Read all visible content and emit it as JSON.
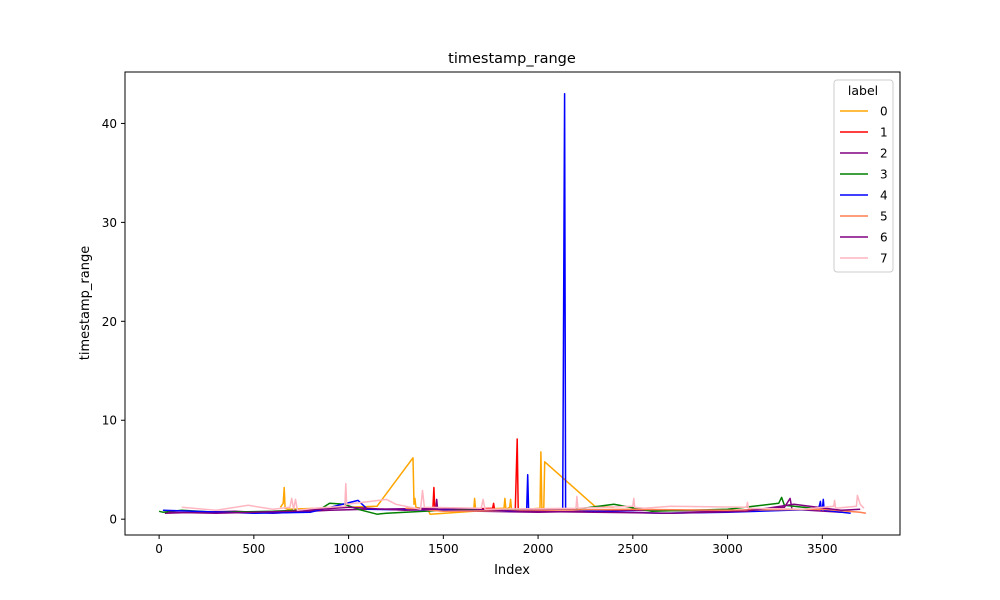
{
  "chart_data": {
    "type": "line",
    "title": "timestamp_range",
    "xlabel": "Index",
    "ylabel": "timestamp_range",
    "xlim": [
      -180,
      3910
    ],
    "ylim": [
      -1.6,
      45.2
    ],
    "xticks": [
      0,
      500,
      1000,
      1500,
      2000,
      2500,
      3000,
      3500
    ],
    "yticks": [
      0,
      10,
      20,
      30,
      40
    ],
    "grid": false,
    "legend": {
      "title": "label",
      "placement": "top-right"
    },
    "series": [
      {
        "name": "0",
        "color": "#ffa500",
        "points": [
          [
            640,
            1.2
          ],
          [
            655,
            1.6
          ],
          [
            660,
            3.2
          ],
          [
            665,
            1.1
          ],
          [
            680,
            1.0
          ],
          [
            1150,
            1.3
          ],
          [
            1340,
            6.2
          ],
          [
            1345,
            1.5
          ],
          [
            1350,
            2.1
          ],
          [
            1355,
            1.2
          ],
          [
            1420,
            0.9
          ],
          [
            1430,
            0.5
          ],
          [
            1660,
            0.8
          ],
          [
            1665,
            2.1
          ],
          [
            1670,
            1.0
          ],
          [
            1820,
            1.1
          ],
          [
            1825,
            2.1
          ],
          [
            1830,
            1.0
          ],
          [
            1850,
            1.2
          ],
          [
            1855,
            2.0
          ],
          [
            1860,
            0.9
          ],
          [
            2010,
            1.1
          ],
          [
            2015,
            6.8
          ],
          [
            2020,
            1.0
          ],
          [
            2030,
            1.2
          ],
          [
            2035,
            5.8
          ],
          [
            2300,
            1.3
          ],
          [
            2400,
            1.2
          ]
        ]
      },
      {
        "name": "1",
        "color": "#ff0000",
        "points": [
          [
            1420,
            1.0
          ],
          [
            1445,
            1.1
          ],
          [
            1450,
            3.2
          ],
          [
            1455,
            1.0
          ],
          [
            1600,
            1.0
          ],
          [
            1760,
            1.1
          ],
          [
            1765,
            1.6
          ],
          [
            1770,
            1.0
          ],
          [
            1880,
            1.0
          ],
          [
            1890,
            8.1
          ],
          [
            1895,
            1.0
          ],
          [
            2000,
            0.9
          ]
        ]
      },
      {
        "name": "2",
        "color": "#800080",
        "points": [
          [
            30,
            0.6
          ],
          [
            200,
            0.7
          ],
          [
            400,
            0.8
          ],
          [
            600,
            0.6
          ],
          [
            900,
            0.9
          ],
          [
            1100,
            1.0
          ],
          [
            1460,
            1.1
          ],
          [
            1465,
            2.0
          ],
          [
            1470,
            0.9
          ],
          [
            1700,
            0.8
          ],
          [
            2000,
            0.7
          ],
          [
            2500,
            0.9
          ],
          [
            3000,
            0.8
          ],
          [
            3300,
            1.2
          ],
          [
            3330,
            2.1
          ],
          [
            3340,
            1.0
          ],
          [
            3600,
            0.7
          ]
        ]
      },
      {
        "name": "3",
        "color": "#008000",
        "points": [
          [
            0,
            0.8
          ],
          [
            20,
            0.7
          ],
          [
            120,
            0.9
          ],
          [
            300,
            0.7
          ],
          [
            600,
            0.8
          ],
          [
            850,
            1.0
          ],
          [
            900,
            1.6
          ],
          [
            980,
            1.5
          ],
          [
            1050,
            1.0
          ],
          [
            1150,
            0.5
          ],
          [
            1200,
            0.6
          ],
          [
            1500,
            0.9
          ],
          [
            2200,
            1.0
          ],
          [
            2400,
            1.5
          ],
          [
            2600,
            0.8
          ],
          [
            3000,
            1.0
          ],
          [
            3270,
            1.6
          ],
          [
            3285,
            2.2
          ],
          [
            3300,
            1.4
          ],
          [
            3500,
            1.0
          ]
        ]
      },
      {
        "name": "4",
        "color": "#0000ff",
        "points": [
          [
            20,
            0.9
          ],
          [
            500,
            0.6
          ],
          [
            800,
            0.7
          ],
          [
            1050,
            1.9
          ],
          [
            1100,
            1.0
          ],
          [
            1900,
            0.8
          ],
          [
            1940,
            1.0
          ],
          [
            1945,
            4.5
          ],
          [
            1950,
            0.9
          ],
          [
            2130,
            1.0
          ],
          [
            2140,
            43.0
          ],
          [
            2145,
            1.0
          ],
          [
            2300,
            0.8
          ],
          [
            2650,
            0.6
          ],
          [
            3000,
            0.7
          ],
          [
            3480,
            1.0
          ],
          [
            3490,
            1.8
          ],
          [
            3495,
            0.9
          ],
          [
            3500,
            1.0
          ],
          [
            3505,
            2.0
          ],
          [
            3510,
            0.9
          ],
          [
            3650,
            0.6
          ]
        ]
      },
      {
        "name": "5",
        "color": "#ff7f50",
        "points": [
          [
            1300,
            1.1
          ],
          [
            1500,
            0.8
          ],
          [
            2500,
            1.0
          ],
          [
            3000,
            0.9
          ],
          [
            3500,
            1.0
          ],
          [
            3700,
            0.7
          ],
          [
            3730,
            0.6
          ]
        ]
      },
      {
        "name": "6",
        "color": "#800080",
        "points": [
          [
            50,
            0.7
          ],
          [
            300,
            0.6
          ],
          [
            700,
            0.8
          ],
          [
            1000,
            1.2
          ],
          [
            1300,
            0.9
          ],
          [
            1600,
            1.1
          ],
          [
            1900,
            0.8
          ],
          [
            2300,
            0.7
          ],
          [
            2700,
            0.6
          ],
          [
            3100,
            0.8
          ],
          [
            3350,
            1.5
          ],
          [
            3600,
            0.9
          ],
          [
            3700,
            1.0
          ]
        ]
      },
      {
        "name": "7",
        "color": "#ffb6c1",
        "points": [
          [
            120,
            1.2
          ],
          [
            300,
            0.9
          ],
          [
            470,
            1.4
          ],
          [
            600,
            1.0
          ],
          [
            690,
            1.2
          ],
          [
            700,
            2.1
          ],
          [
            710,
            1.0
          ],
          [
            720,
            2.0
          ],
          [
            730,
            0.9
          ],
          [
            820,
            1.1
          ],
          [
            980,
            1.3
          ],
          [
            985,
            3.6
          ],
          [
            990,
            1.5
          ],
          [
            1200,
            2.0
          ],
          [
            1250,
            1.5
          ],
          [
            1380,
            1.0
          ],
          [
            1390,
            2.9
          ],
          [
            1400,
            1.2
          ],
          [
            1700,
            1.1
          ],
          [
            1710,
            2.0
          ],
          [
            1720,
            1.0
          ],
          [
            2200,
            1.1
          ],
          [
            2205,
            2.3
          ],
          [
            2210,
            1.1
          ],
          [
            2500,
            1.3
          ],
          [
            2505,
            2.1
          ],
          [
            2510,
            1.2
          ],
          [
            2560,
            1.1
          ],
          [
            2700,
            1.3
          ],
          [
            3100,
            1.2
          ],
          [
            3105,
            1.7
          ],
          [
            3110,
            1.1
          ],
          [
            3400,
            1.0
          ],
          [
            3560,
            1.3
          ],
          [
            3565,
            1.9
          ],
          [
            3570,
            1.1
          ],
          [
            3680,
            1.3
          ],
          [
            3685,
            2.4
          ],
          [
            3700,
            1.5
          ],
          [
            3720,
            1.1
          ]
        ]
      }
    ]
  }
}
